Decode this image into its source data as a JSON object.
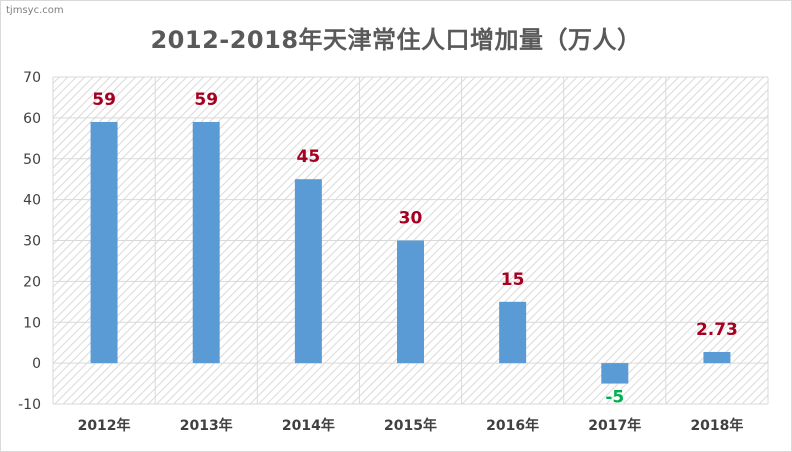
{
  "watermark": "tjmsyc.com",
  "chart_data": {
    "type": "bar",
    "title": "2012-2018年天津常住人口增加量（万人）",
    "categories": [
      "2012年",
      "2013年",
      "2014年",
      "2015年",
      "2016年",
      "2017年",
      "2018年"
    ],
    "values": [
      59,
      59,
      45,
      30,
      15,
      -5,
      2.73
    ],
    "data_labels": [
      "59",
      "59",
      "45",
      "30",
      "15",
      "-5",
      "2.73"
    ],
    "ylim": [
      -10,
      70
    ],
    "yticks": [
      -10,
      0,
      10,
      20,
      30,
      40,
      50,
      60,
      70
    ],
    "grid": true,
    "legend": "none",
    "colors": {
      "bar": "#5b9bd5",
      "label_positive": "#a50021",
      "label_negative": "#00b050",
      "grid": "#d9d9d9",
      "plot_hatch": "#d0d0d0"
    }
  }
}
